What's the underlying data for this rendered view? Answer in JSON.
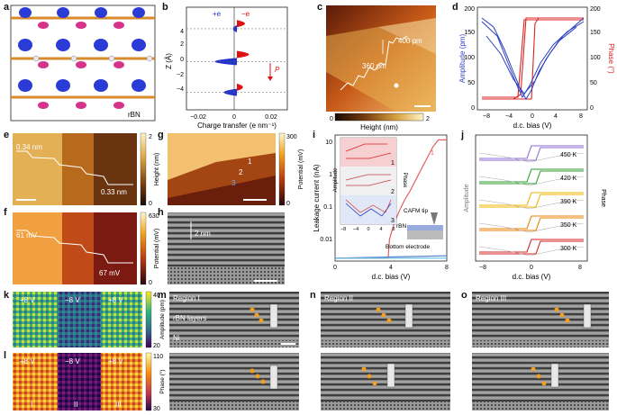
{
  "labels": {
    "a": "a",
    "b": "b",
    "c": "c",
    "d": "d",
    "e": "e",
    "f": "f",
    "g": "g",
    "h": "h",
    "i": "i",
    "j": "j",
    "k": "k",
    "l": "l",
    "m": "m",
    "n": "n",
    "o": "o"
  },
  "panel_a": {
    "tag": "rBN"
  },
  "panel_b": {
    "ylabel": "Z (Å)",
    "xlabel": "Charge transfer (e nm⁻¹)",
    "legend_pos": "+e",
    "legend_neg": "−e",
    "polarization": "P",
    "xticks": [
      "−0.02",
      "0",
      "0.02"
    ],
    "yticks": [
      "4",
      "2",
      "0",
      "−2",
      "−4"
    ]
  },
  "panel_c": {
    "step1": "400 pm",
    "step2": "360 pm",
    "colorbar_label": "Height (nm)",
    "cmin": "0",
    "cmax": "2"
  },
  "panel_d": {
    "ylabel_left": "Amplitude (pm)",
    "ylabel_right": "Phase (°)",
    "xlabel": "d.c. bias (V)",
    "yticks_left": [
      "0",
      "50",
      "100",
      "150",
      "200"
    ],
    "yticks_right": [
      "0",
      "50",
      "100",
      "150",
      "200"
    ],
    "xticks": [
      "−8",
      "−4",
      "0",
      "4",
      "8"
    ]
  },
  "panel_e": {
    "step1": "0.34 nm",
    "step2": "0.33 nm",
    "colorbar_label": "Height (nm)",
    "cmax": "2",
    "cmin": "0"
  },
  "panel_f": {
    "step1": "61 mV",
    "step2": "67 mV",
    "colorbar_label": "Potential (mV)",
    "cmax": "630",
    "cmin": "0"
  },
  "panel_g": {
    "n1": "1",
    "n2": "2",
    "n3": "3",
    "colorbar_label": "Potential (mV)",
    "cmax": "300",
    "cmin": "0"
  },
  "panel_h": {
    "scale": "2 nm"
  },
  "panel_i": {
    "ylabel": "Leakage current (nA)",
    "xlabel": "d.c. bias (V)",
    "yticks": [
      "10",
      "1",
      "0.1",
      "0.01"
    ],
    "xticks": [
      "0",
      "4",
      "8"
    ],
    "inset_amp": "Amplitude",
    "inset_phase": "Phase",
    "inset_xticks": [
      "−8",
      "−4",
      "0",
      "4",
      "8"
    ],
    "n1": "1",
    "n2": "2",
    "n3": "3",
    "tip": "CAFM tip",
    "sample": "rBN",
    "electrode": "Bottom electrode"
  },
  "panel_j": {
    "ylabel_left": "Amplitude",
    "ylabel_right": "Phase",
    "xlabel": "d.c. bias (V)",
    "xticks": [
      "−8",
      "0",
      "8"
    ],
    "temps": [
      "450 K",
      "420 K",
      "390 K",
      "350 K",
      "300 K"
    ],
    "colors": [
      "#8e6bd6",
      "#2a9d2a",
      "#f0b400",
      "#f07c00",
      "#d62020"
    ]
  },
  "panel_k": {
    "v1": "+8 V",
    "v2": "−8 V",
    "v3": "+8 V",
    "colorbar_label": "Amplitude (pm)",
    "cmax": "40",
    "cmin": "20"
  },
  "panel_l": {
    "v1": "+8 V",
    "v2": "−8 V",
    "v3": "+8 V",
    "r1": "I",
    "r2": "II",
    "r3": "III",
    "colorbar_label": "Phase (°)",
    "cmax": "110",
    "cmin": "30"
  },
  "panel_m": {
    "region": "Region I",
    "layers": "rBN layers",
    "substrate": "Ni"
  },
  "panel_n": {
    "region": "Region II"
  },
  "panel_o": {
    "region": "Region III"
  },
  "chart_data": [
    {
      "panel": "b",
      "type": "area",
      "xlabel": "Charge transfer (e nm⁻¹)",
      "ylabel": "Z (Å)",
      "xlim": [
        -0.025,
        0.025
      ],
      "ylim": [
        -5,
        5
      ],
      "series": [
        {
          "name": "+e",
          "color": "#2233cc",
          "peaks": [
            {
              "z": 2.9,
              "value": -0.004
            },
            {
              "z": -0.3,
              "value": -0.022
            },
            {
              "z": -3.3,
              "value": -0.013
            }
          ]
        },
        {
          "name": "−e",
          "color": "#dd1111",
          "peaks": [
            {
              "z": 3.4,
              "value": 0.008
            },
            {
              "z": 0.4,
              "value": 0.012
            },
            {
              "z": -2.8,
              "value": 0.006
            }
          ]
        }
      ]
    },
    {
      "panel": "i",
      "type": "line",
      "xlabel": "d.c. bias (V)",
      "ylabel": "Leakage current (nA)",
      "ylog": true,
      "xlim": [
        0,
        8
      ],
      "ylim": [
        0.005,
        15
      ],
      "series": [
        {
          "name": "1",
          "color": "#e06060",
          "x": [
            0,
            3.8,
            3.9,
            4.2,
            4.6,
            5.0,
            5.4,
            5.8,
            6.2,
            6.6,
            7.0,
            7.4,
            8.0
          ],
          "y": [
            0.006,
            0.006,
            0.02,
            0.05,
            0.12,
            0.25,
            0.45,
            0.9,
            1.8,
            3.5,
            7,
            11,
            11
          ]
        },
        {
          "name": "2",
          "color": "#6080d0",
          "x": [
            0,
            8
          ],
          "y": [
            0.006,
            0.007
          ]
        },
        {
          "name": "3",
          "color": "#60c0e0",
          "x": [
            0,
            8
          ],
          "y": [
            0.006,
            0.006
          ]
        }
      ]
    }
  ]
}
